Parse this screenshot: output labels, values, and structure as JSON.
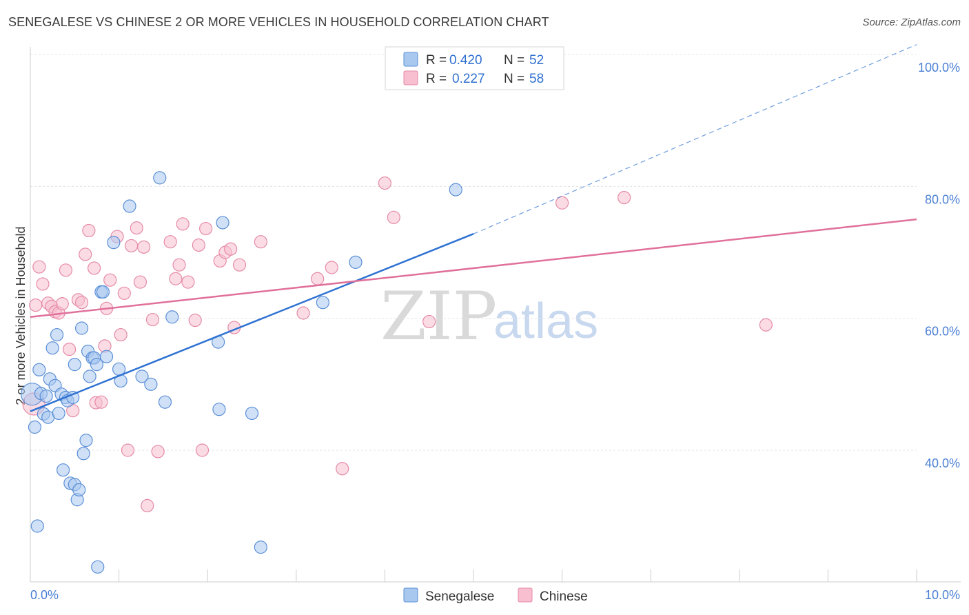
{
  "title": "SENEGALESE VS CHINESE 2 OR MORE VEHICLES IN HOUSEHOLD CORRELATION CHART",
  "source": "Source: ZipAtlas.com",
  "watermark": {
    "zip": "ZIP",
    "atlas": "atlas"
  },
  "colors": {
    "senegalese_fill": "#a9c8f0",
    "senegalese_stroke": "#5b8fd6",
    "senegalese_line": "#2e72d2",
    "chinese_fill": "#f7bfd0",
    "chinese_stroke": "#e58aa6",
    "chinese_line": "#e0709a",
    "grid": "#e3e3e3",
    "axis_text": "#4a7fd4"
  },
  "legend": {
    "r_label": "R =",
    "n_label": "N =",
    "rows": [
      {
        "series": "Senegalese",
        "r": "0.420",
        "n": "52"
      },
      {
        "series": "Chinese",
        "r": "0.227",
        "n": "58"
      }
    ]
  },
  "chart_data": {
    "type": "scatter",
    "title": "SENEGALESE VS CHINESE 2 OR MORE VEHICLES IN HOUSEHOLD CORRELATION CHART",
    "xlabel": "",
    "ylabel": "2 or more Vehicles in Household",
    "xlim": [
      0,
      10
    ],
    "ylim": [
      20,
      102
    ],
    "x_tick_labels": [
      {
        "value": 0,
        "label": "0.0%"
      },
      {
        "value": 10,
        "label": "10.0%"
      }
    ],
    "y_tick_labels": [
      {
        "value": 40,
        "label": "40.0%"
      },
      {
        "value": 60,
        "label": "60.0%"
      },
      {
        "value": 80,
        "label": "80.0%"
      },
      {
        "value": 100,
        "label": "100.0%"
      }
    ],
    "series": [
      {
        "name": "Senegalese",
        "r": 0.42,
        "n": 52,
        "trend": {
          "x": [
            0,
            5.0
          ],
          "y": [
            45.9,
            72.8
          ],
          "extended_to": [
            10,
            101.5
          ]
        },
        "points": [
          {
            "x": 0.02,
            "y": 48.5,
            "big": true
          },
          {
            "x": 0.05,
            "y": 43.5
          },
          {
            "x": 0.08,
            "y": 28.5
          },
          {
            "x": 0.1,
            "y": 52.2
          },
          {
            "x": 0.12,
            "y": 48.6
          },
          {
            "x": 0.15,
            "y": 45.5
          },
          {
            "x": 0.18,
            "y": 48.2
          },
          {
            "x": 0.2,
            "y": 45.0
          },
          {
            "x": 0.22,
            "y": 50.8
          },
          {
            "x": 0.25,
            "y": 55.5
          },
          {
            "x": 0.28,
            "y": 49.8
          },
          {
            "x": 0.3,
            "y": 57.5
          },
          {
            "x": 0.32,
            "y": 45.6
          },
          {
            "x": 0.35,
            "y": 48.5
          },
          {
            "x": 0.37,
            "y": 37.0
          },
          {
            "x": 0.4,
            "y": 48.0
          },
          {
            "x": 0.42,
            "y": 47.5
          },
          {
            "x": 0.45,
            "y": 35.0
          },
          {
            "x": 0.48,
            "y": 48.0
          },
          {
            "x": 0.5,
            "y": 53.0
          },
          {
            "x": 0.5,
            "y": 34.8
          },
          {
            "x": 0.53,
            "y": 32.5
          },
          {
            "x": 0.55,
            "y": 34.0
          },
          {
            "x": 0.58,
            "y": 58.5
          },
          {
            "x": 0.6,
            "y": 39.5
          },
          {
            "x": 0.63,
            "y": 41.5
          },
          {
            "x": 0.65,
            "y": 55.0
          },
          {
            "x": 0.67,
            "y": 51.2
          },
          {
            "x": 0.7,
            "y": 54.0
          },
          {
            "x": 0.72,
            "y": 54.0
          },
          {
            "x": 0.75,
            "y": 53.0
          },
          {
            "x": 0.76,
            "y": 22.3
          },
          {
            "x": 0.8,
            "y": 64.0
          },
          {
            "x": 0.82,
            "y": 64.0
          },
          {
            "x": 0.86,
            "y": 54.2
          },
          {
            "x": 1.0,
            "y": 52.3
          },
          {
            "x": 1.02,
            "y": 50.5
          },
          {
            "x": 0.94,
            "y": 71.5
          },
          {
            "x": 1.12,
            "y": 77.0
          },
          {
            "x": 1.26,
            "y": 51.2
          },
          {
            "x": 1.36,
            "y": 50.0
          },
          {
            "x": 1.46,
            "y": 81.3
          },
          {
            "x": 1.52,
            "y": 47.3
          },
          {
            "x": 1.6,
            "y": 60.2
          },
          {
            "x": 2.12,
            "y": 56.4
          },
          {
            "x": 2.13,
            "y": 46.2
          },
          {
            "x": 2.17,
            "y": 74.5
          },
          {
            "x": 2.5,
            "y": 45.6
          },
          {
            "x": 2.6,
            "y": 25.3
          },
          {
            "x": 3.3,
            "y": 62.4
          },
          {
            "x": 3.67,
            "y": 68.5
          },
          {
            "x": 4.8,
            "y": 79.5
          }
        ]
      },
      {
        "name": "Chinese",
        "r": 0.227,
        "n": 58,
        "trend": {
          "x": [
            0,
            10
          ],
          "y": [
            60.2,
            75.0
          ]
        },
        "points": [
          {
            "x": 0.04,
            "y": 47.0,
            "big": true
          },
          {
            "x": 0.06,
            "y": 62.0
          },
          {
            "x": 0.1,
            "y": 67.8
          },
          {
            "x": 0.14,
            "y": 65.2
          },
          {
            "x": 0.2,
            "y": 62.3
          },
          {
            "x": 0.24,
            "y": 61.8
          },
          {
            "x": 0.28,
            "y": 61.0
          },
          {
            "x": 0.32,
            "y": 60.8
          },
          {
            "x": 0.36,
            "y": 62.2
          },
          {
            "x": 0.4,
            "y": 67.3
          },
          {
            "x": 0.44,
            "y": 55.3
          },
          {
            "x": 0.48,
            "y": 46.0
          },
          {
            "x": 0.54,
            "y": 62.8
          },
          {
            "x": 0.58,
            "y": 62.4
          },
          {
            "x": 0.62,
            "y": 69.7
          },
          {
            "x": 0.66,
            "y": 73.3
          },
          {
            "x": 0.72,
            "y": 67.6
          },
          {
            "x": 0.74,
            "y": 47.2
          },
          {
            "x": 0.8,
            "y": 47.3
          },
          {
            "x": 0.84,
            "y": 55.8
          },
          {
            "x": 0.86,
            "y": 61.5
          },
          {
            "x": 0.9,
            "y": 65.8
          },
          {
            "x": 0.98,
            "y": 72.4
          },
          {
            "x": 1.02,
            "y": 57.5
          },
          {
            "x": 1.06,
            "y": 63.8
          },
          {
            "x": 1.1,
            "y": 40.0
          },
          {
            "x": 1.14,
            "y": 71.0
          },
          {
            "x": 1.2,
            "y": 73.7
          },
          {
            "x": 1.24,
            "y": 65.5
          },
          {
            "x": 1.28,
            "y": 70.8
          },
          {
            "x": 1.32,
            "y": 31.6
          },
          {
            "x": 1.38,
            "y": 59.8
          },
          {
            "x": 1.44,
            "y": 39.8
          },
          {
            "x": 1.58,
            "y": 71.6
          },
          {
            "x": 1.64,
            "y": 66.0
          },
          {
            "x": 1.68,
            "y": 68.1
          },
          {
            "x": 1.72,
            "y": 74.3
          },
          {
            "x": 1.78,
            "y": 65.5
          },
          {
            "x": 1.86,
            "y": 59.7
          },
          {
            "x": 1.9,
            "y": 71.1
          },
          {
            "x": 1.94,
            "y": 40.0
          },
          {
            "x": 1.98,
            "y": 73.6
          },
          {
            "x": 2.14,
            "y": 68.7
          },
          {
            "x": 2.2,
            "y": 70.0
          },
          {
            "x": 2.26,
            "y": 70.5
          },
          {
            "x": 2.3,
            "y": 58.6
          },
          {
            "x": 2.36,
            "y": 68.1
          },
          {
            "x": 2.6,
            "y": 71.6
          },
          {
            "x": 3.08,
            "y": 60.8
          },
          {
            "x": 3.24,
            "y": 66.0
          },
          {
            "x": 3.4,
            "y": 67.7
          },
          {
            "x": 3.52,
            "y": 37.2
          },
          {
            "x": 4.0,
            "y": 80.5
          },
          {
            "x": 4.1,
            "y": 75.3
          },
          {
            "x": 4.5,
            "y": 59.5
          },
          {
            "x": 6.0,
            "y": 77.5
          },
          {
            "x": 6.7,
            "y": 78.3
          },
          {
            "x": 8.3,
            "y": 59.0
          }
        ]
      }
    ]
  }
}
